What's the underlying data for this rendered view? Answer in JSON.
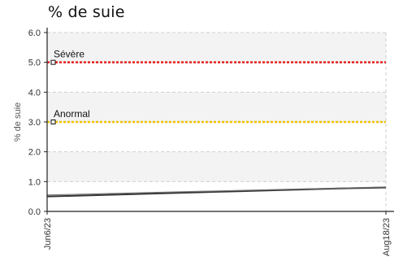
{
  "chart_data": {
    "type": "line",
    "title": "% de suie",
    "ylabel": "% de suie",
    "xlabel": "",
    "ylim": [
      0,
      6
    ],
    "yticks": [
      "0.0",
      "1.0",
      "2.0",
      "3.0",
      "4.0",
      "5.0",
      "6.0"
    ],
    "xlim": [
      "Jun6/23",
      "Aug18/23"
    ],
    "xticks": [
      "Jun6/23",
      "Aug18/23"
    ],
    "grid": true,
    "thresholds": [
      {
        "label": "Sévère",
        "value": 5.0,
        "color": "#e82020"
      },
      {
        "label": "Anormal",
        "value": 3.0,
        "color": "#f2c200"
      }
    ],
    "series": [
      {
        "color": "#333333",
        "x": [
          "Jun6/23",
          "Jun13/23",
          "Jun20/23",
          "Jun27/23",
          "Jul4/23",
          "Jul11/23",
          "Jul18/23",
          "Jul25/23",
          "Aug1/23",
          "Aug8/23",
          "Aug18/23"
        ],
        "values": [
          0.5,
          0.53,
          0.56,
          0.59,
          0.62,
          0.65,
          0.68,
          0.71,
          0.74,
          0.77,
          0.8
        ]
      },
      {
        "color": "#777777",
        "x": [
          "Jun6/23",
          "Aug18/23"
        ],
        "values": [
          0.55,
          0.82
        ]
      }
    ]
  }
}
